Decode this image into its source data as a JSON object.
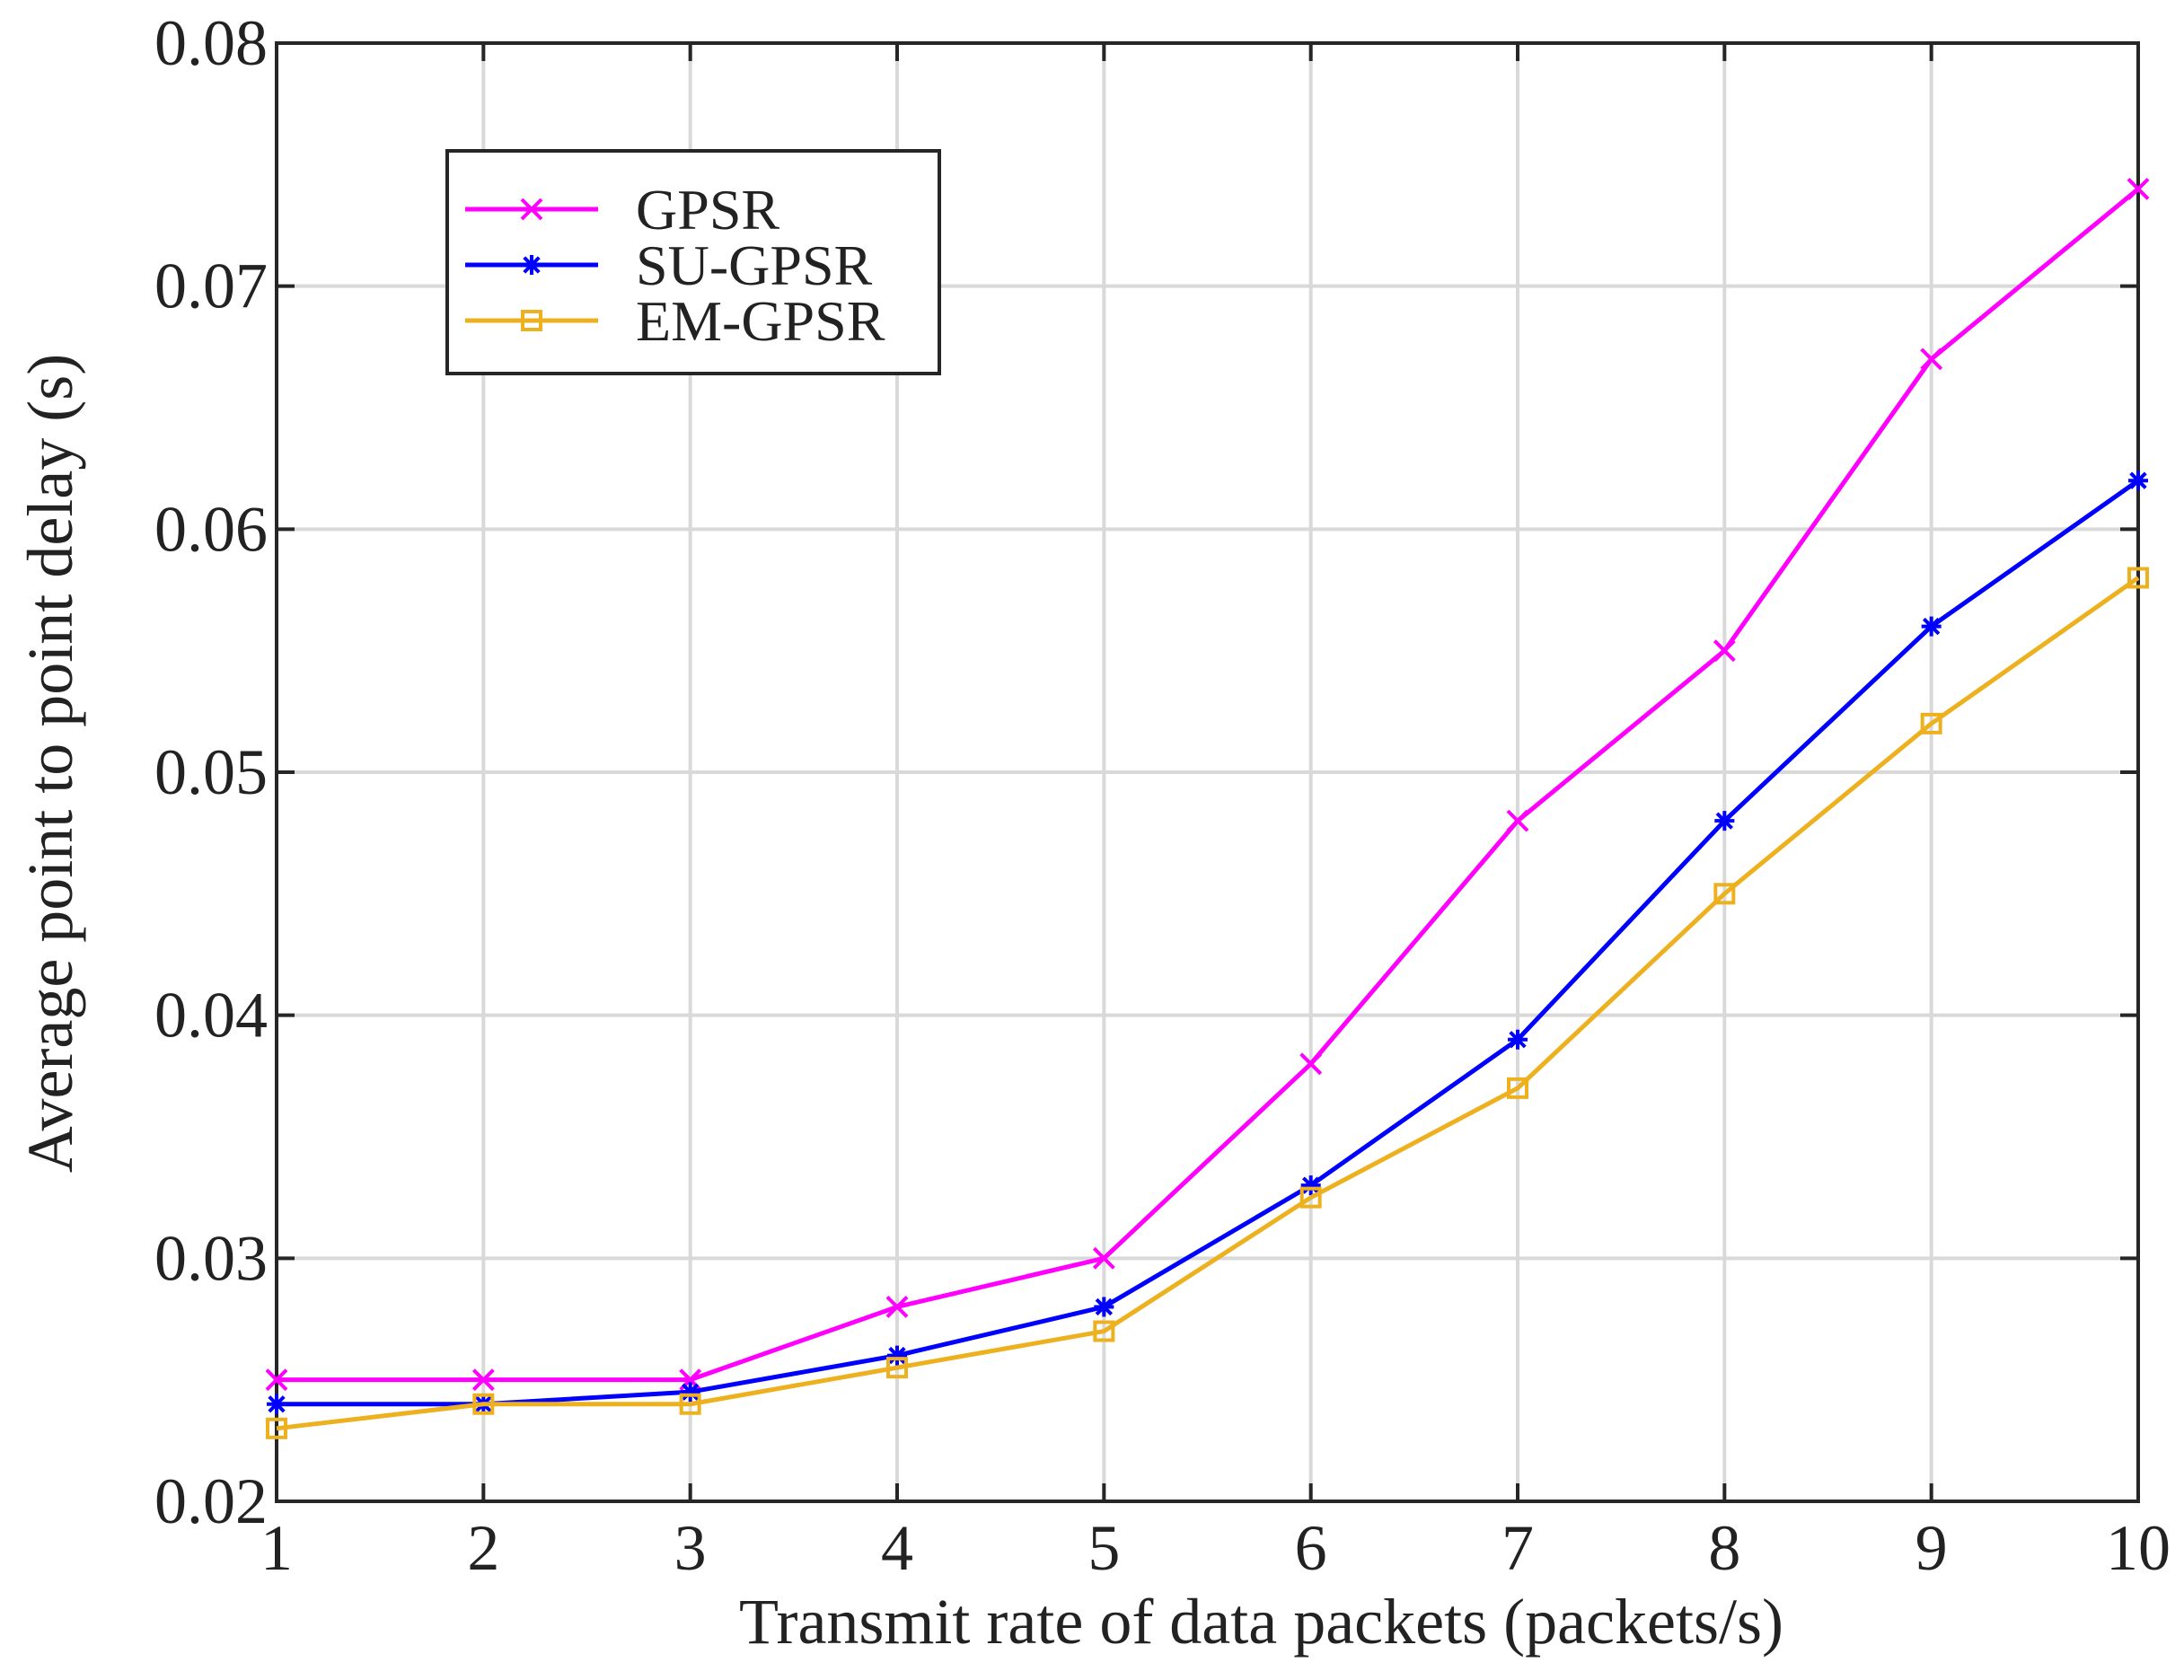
{
  "chart_data": {
    "type": "line",
    "title": "",
    "xlabel": "Transmit rate of data packets (packets/s)",
    "ylabel": "Average point to point delay (s)",
    "xlim": [
      1,
      10
    ],
    "ylim": [
      0.02,
      0.08
    ],
    "grid": true,
    "legend_position": "top-left",
    "x": [
      1,
      2,
      3,
      4,
      5,
      6,
      7,
      8,
      9,
      10
    ],
    "x_tick_labels": [
      "1",
      "2",
      "3",
      "4",
      "5",
      "6",
      "7",
      "8",
      "9",
      "10"
    ],
    "y_ticks": [
      0.02,
      0.03,
      0.04,
      0.05,
      0.06,
      0.07,
      0.08
    ],
    "y_tick_labels": [
      "0.02",
      "0.03",
      "0.04",
      "0.05",
      "0.06",
      "0.07",
      "0.08"
    ],
    "series": [
      {
        "name": "GPSR",
        "color": "#ff00ff",
        "marker": "x",
        "values": [
          0.025,
          0.025,
          0.025,
          0.028,
          0.03,
          0.038,
          0.048,
          0.055,
          0.067,
          0.074
        ]
      },
      {
        "name": "SU-GPSR",
        "color": "#0000ff",
        "marker": "asterisk",
        "values": [
          0.024,
          0.024,
          0.0245,
          0.026,
          0.028,
          0.033,
          0.039,
          0.048,
          0.056,
          0.062
        ]
      },
      {
        "name": "EM-GPSR",
        "color": "#edb120",
        "marker": "square",
        "values": [
          0.023,
          0.024,
          0.024,
          0.0255,
          0.027,
          0.0325,
          0.037,
          0.045,
          0.052,
          0.058
        ]
      }
    ]
  }
}
